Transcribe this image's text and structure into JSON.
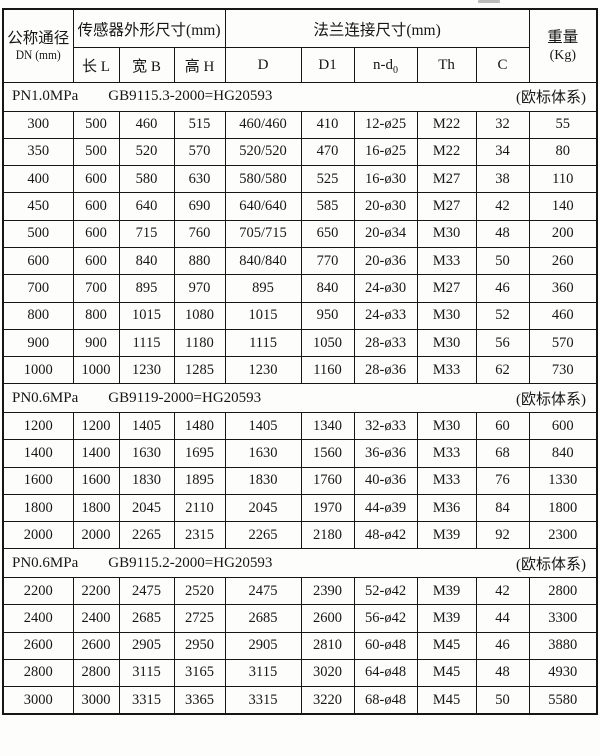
{
  "table": {
    "header": {
      "dn_line1": "公称通径",
      "dn_line2": "DN (mm)",
      "sensor_group": "传感器外形尺寸(mm)",
      "sensor_cols": [
        "长 L",
        "宽 B",
        "高 H"
      ],
      "flange_group": "法兰连接尺寸(mm)",
      "flange_cols": [
        {
          "text": "D",
          "sub": ""
        },
        {
          "text": "D1",
          "sub": ""
        },
        {
          "text": "n-d",
          "sub": "0"
        },
        {
          "text": "Th",
          "sub": ""
        },
        {
          "text": "C",
          "sub": ""
        }
      ],
      "weight_line1": "重量",
      "weight_line2": "(Kg)"
    },
    "sections": [
      {
        "pressure": "PN1.0MPa",
        "standard": "GB9115.3-2000=HG20593",
        "system": "(欧标体系)",
        "rows": [
          [
            "300",
            "500",
            "460",
            "515",
            "460/460",
            "410",
            "12-ø25",
            "M22",
            "32",
            "55"
          ],
          [
            "350",
            "500",
            "520",
            "570",
            "520/520",
            "470",
            "16-ø25",
            "M22",
            "34",
            "80"
          ],
          [
            "400",
            "600",
            "580",
            "630",
            "580/580",
            "525",
            "16-ø30",
            "M27",
            "38",
            "110"
          ],
          [
            "450",
            "600",
            "640",
            "690",
            "640/640",
            "585",
            "20-ø30",
            "M27",
            "42",
            "140"
          ],
          [
            "500",
            "600",
            "715",
            "760",
            "705/715",
            "650",
            "20-ø34",
            "M30",
            "48",
            "200"
          ],
          [
            "600",
            "600",
            "840",
            "880",
            "840/840",
            "770",
            "20-ø36",
            "M33",
            "50",
            "260"
          ],
          [
            "700",
            "700",
            "895",
            "970",
            "895",
            "840",
            "24-ø30",
            "M27",
            "46",
            "360"
          ],
          [
            "800",
            "800",
            "1015",
            "1080",
            "1015",
            "950",
            "24-ø33",
            "M30",
            "52",
            "460"
          ],
          [
            "900",
            "900",
            "1115",
            "1180",
            "1115",
            "1050",
            "28-ø33",
            "M30",
            "56",
            "570"
          ],
          [
            "1000",
            "1000",
            "1230",
            "1285",
            "1230",
            "1160",
            "28-ø36",
            "M33",
            "62",
            "730"
          ]
        ]
      },
      {
        "pressure": "PN0.6MPa",
        "standard": "GB9119-2000=HG20593",
        "system": "(欧标体系)",
        "rows": [
          [
            "1200",
            "1200",
            "1405",
            "1480",
            "1405",
            "1340",
            "32-ø33",
            "M30",
            "60",
            "600"
          ],
          [
            "1400",
            "1400",
            "1630",
            "1695",
            "1630",
            "1560",
            "36-ø36",
            "M33",
            "68",
            "840"
          ],
          [
            "1600",
            "1600",
            "1830",
            "1895",
            "1830",
            "1760",
            "40-ø36",
            "M33",
            "76",
            "1330"
          ],
          [
            "1800",
            "1800",
            "2045",
            "2110",
            "2045",
            "1970",
            "44-ø39",
            "M36",
            "84",
            "1800"
          ],
          [
            "2000",
            "2000",
            "2265",
            "2315",
            "2265",
            "2180",
            "48-ø42",
            "M39",
            "92",
            "2300"
          ]
        ]
      },
      {
        "pressure": "PN0.6MPa",
        "standard": "GB9115.2-2000=HG20593",
        "system": "(欧标体系)",
        "rows": [
          [
            "2200",
            "2200",
            "2475",
            "2520",
            "2475",
            "2390",
            "52-ø42",
            "M39",
            "42",
            "2800"
          ],
          [
            "2400",
            "2400",
            "2685",
            "2725",
            "2685",
            "2600",
            "56-ø42",
            "M39",
            "44",
            "3300"
          ],
          [
            "2600",
            "2600",
            "2905",
            "2950",
            "2905",
            "2810",
            "60-ø48",
            "M45",
            "46",
            "3880"
          ],
          [
            "2800",
            "2800",
            "3115",
            "3165",
            "3115",
            "3020",
            "64-ø48",
            "M45",
            "48",
            "4930"
          ],
          [
            "3000",
            "3000",
            "3315",
            "3365",
            "3315",
            "3220",
            "68-ø48",
            "M45",
            "50",
            "5580"
          ]
        ]
      }
    ]
  }
}
